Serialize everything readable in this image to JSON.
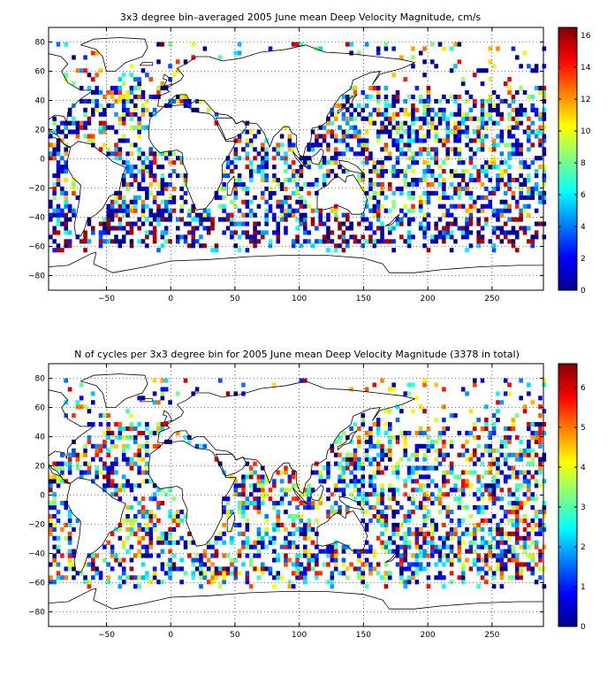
{
  "chart_data": [
    {
      "type": "heatmap",
      "title": "3x3 degree bin–averaged 2005 June mean Deep Velocity Magnitude, cm/s",
      "xlabel": "",
      "ylabel": "",
      "xlim": [
        -95,
        290
      ],
      "ylim": [
        -90,
        90
      ],
      "x_ticks": [
        -50,
        0,
        50,
        100,
        150,
        200,
        250
      ],
      "y_ticks": [
        -80,
        -60,
        -40,
        -20,
        0,
        20,
        40,
        60,
        80
      ],
      "colorbar": {
        "min": 0,
        "max": 16.5,
        "ticks": [
          0,
          2,
          4,
          6,
          8,
          10,
          12,
          14,
          16
        ],
        "colormap": "jet"
      },
      "grid": true,
      "bin_size_deg": 3
    },
    {
      "type": "heatmap",
      "title": "N of cycles per 3x3 degree bin for 2005 June mean Deep Velocity Magnitude (3378 in total)",
      "xlabel": "",
      "ylabel": "",
      "xlim": [
        -95,
        290
      ],
      "ylim": [
        -90,
        90
      ],
      "x_ticks": [
        -50,
        0,
        50,
        100,
        150,
        200,
        250
      ],
      "y_ticks": [
        -80,
        -60,
        -40,
        -20,
        0,
        20,
        40,
        60,
        80
      ],
      "colorbar": {
        "min": 0,
        "max": 6.6,
        "ticks": [
          0,
          1,
          2,
          3,
          4,
          5,
          6
        ],
        "colormap": "jet"
      },
      "grid": true,
      "bin_size_deg": 3
    }
  ]
}
